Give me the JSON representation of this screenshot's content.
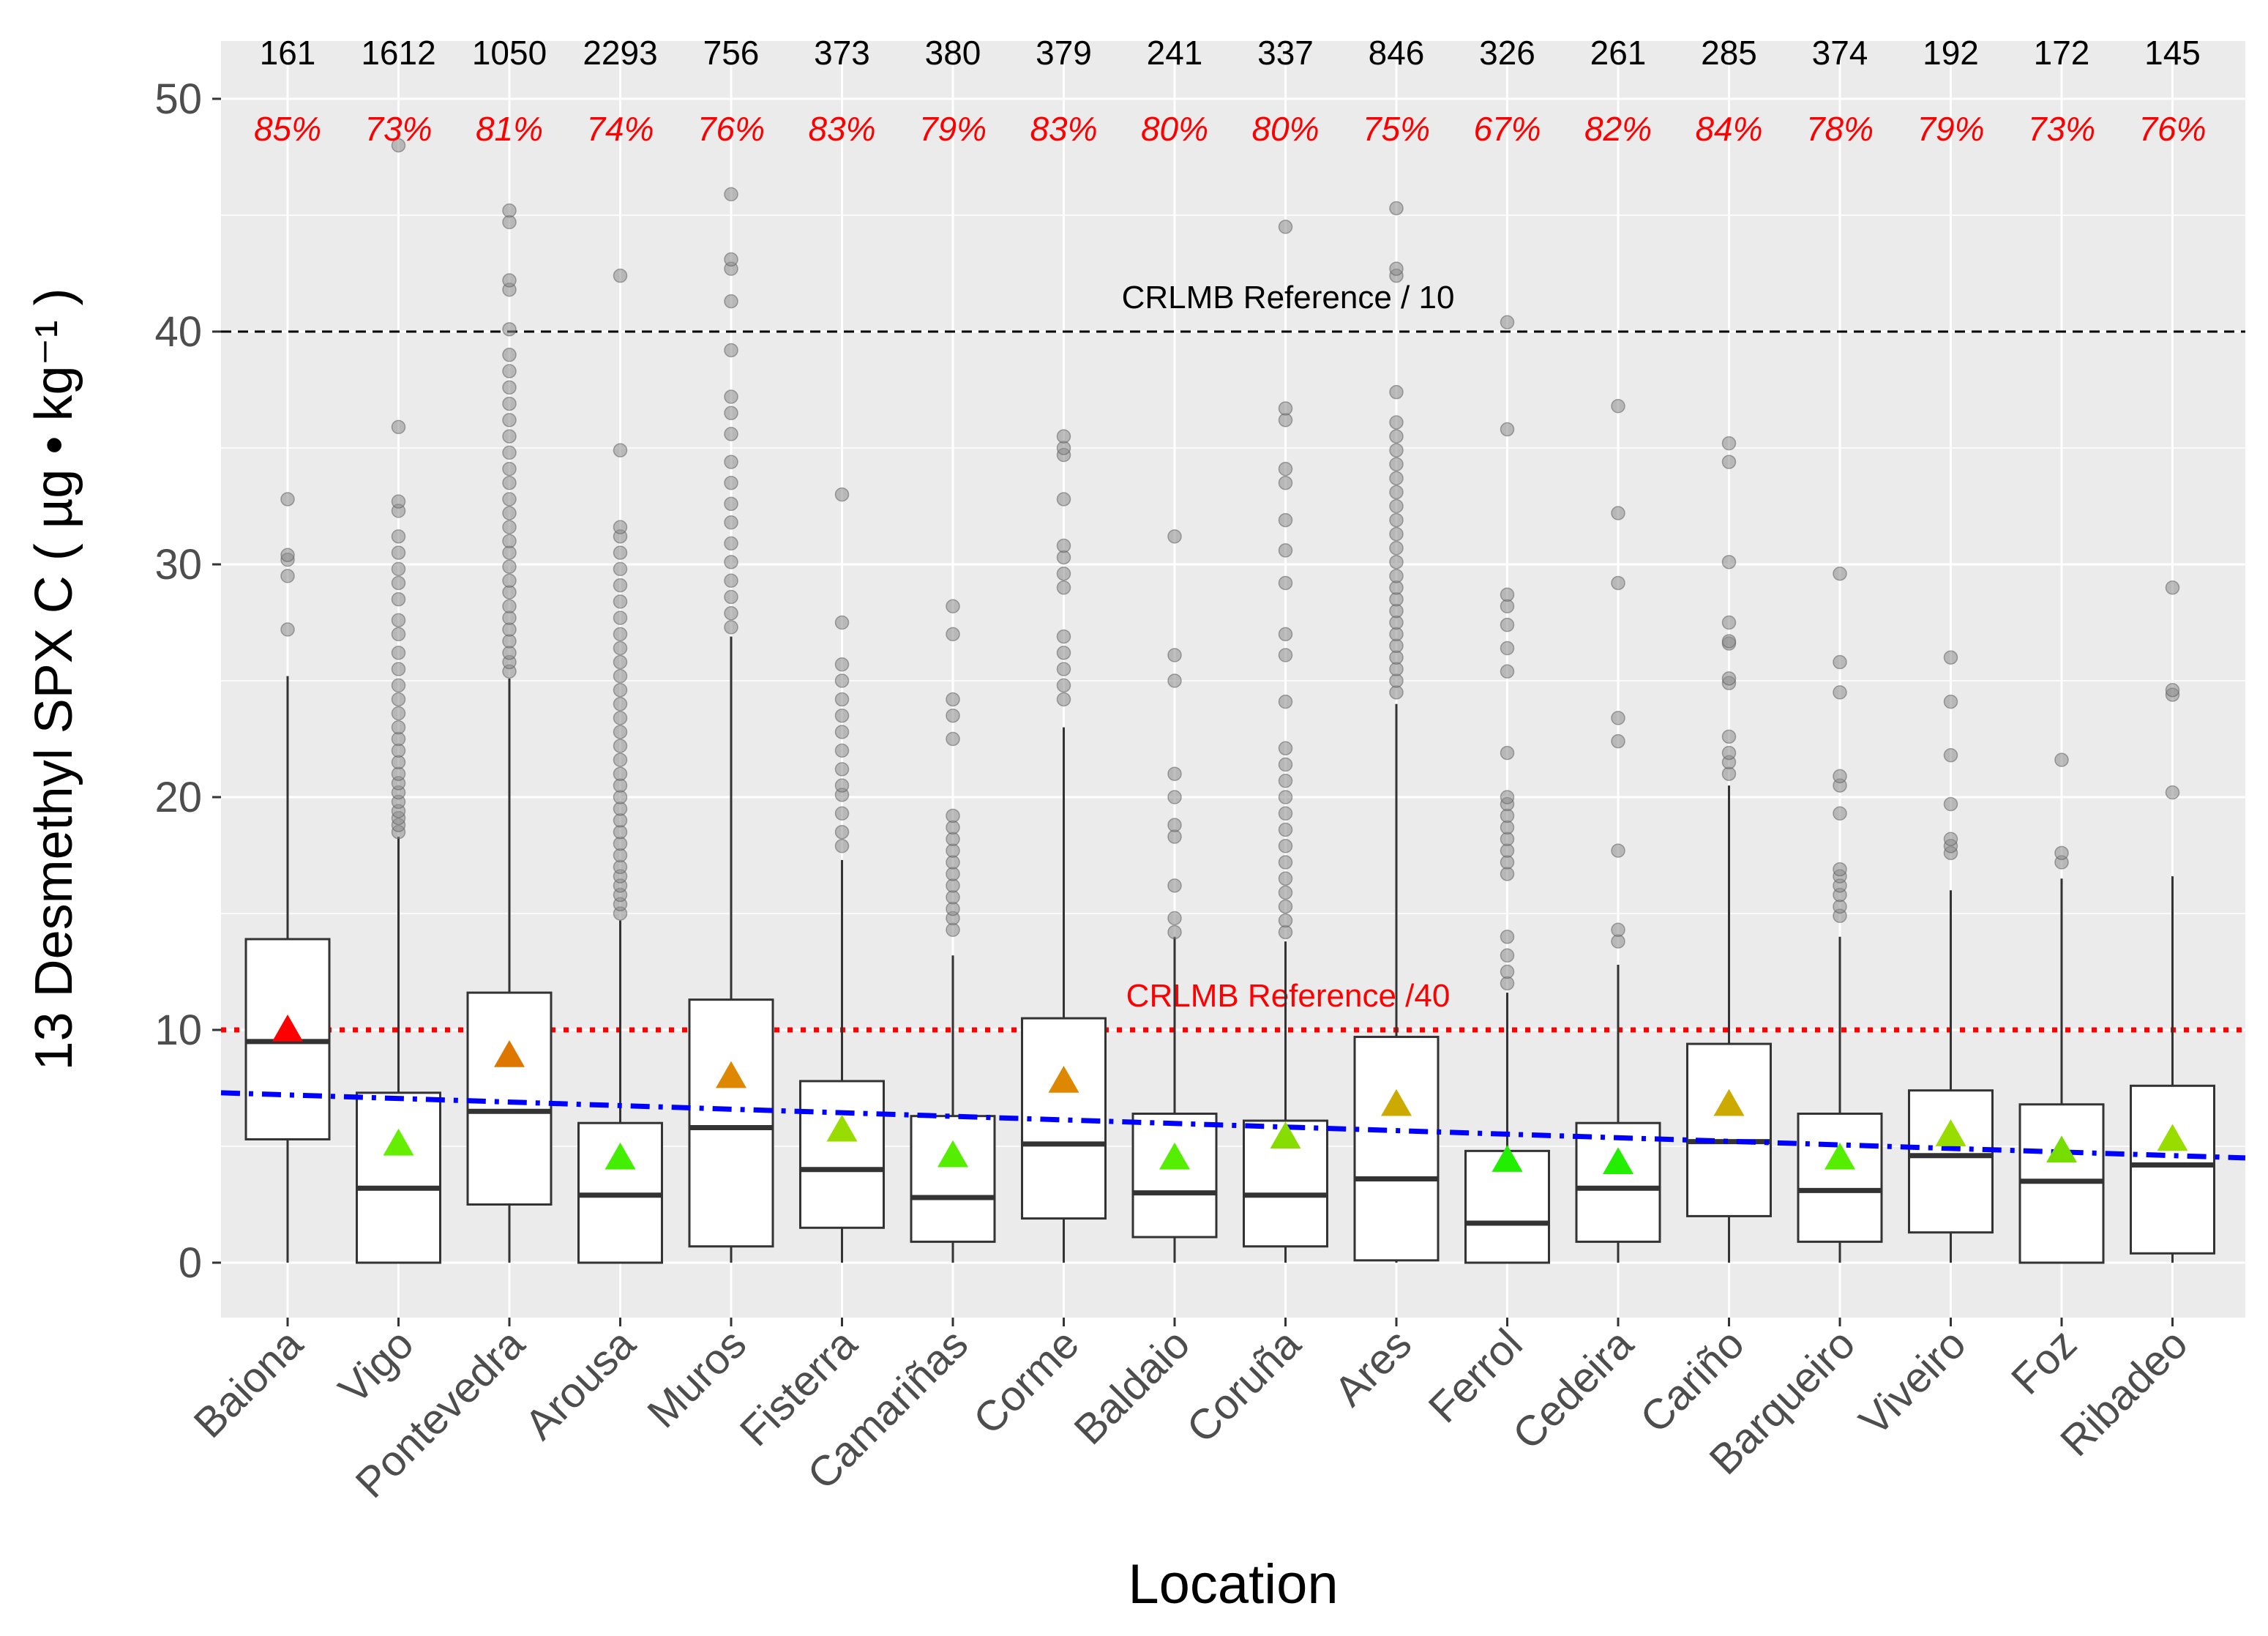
{
  "chart_data": {
    "type": "box",
    "ylabel": "13 Desmethyl SPX C ( µg • kg⁻¹ )",
    "xlabel": "Location",
    "ylim": [
      -2.4,
      52.5
    ],
    "yticks": [
      0,
      10,
      20,
      30,
      40,
      50
    ],
    "grid": true,
    "colors": {
      "panel": "#ebebeb",
      "grid_major": "#ffffff",
      "box_fill": "#ffffff",
      "box_line": "#333333",
      "outlier": "#8c8c8c",
      "trend": "#0000ff",
      "ref40": "#ff0000",
      "ref10": "#000000",
      "pct_text": "#ff0000"
    },
    "reference_lines": [
      {
        "name": "ref10",
        "label": "CRLMB Reference / 10",
        "y": 40,
        "style": "dashed",
        "color": "#000000"
      },
      {
        "name": "ref40",
        "label": "CRLMB Reference /40",
        "y": 10,
        "style": "dotted",
        "color": "#ff0000"
      }
    ],
    "trend_line": {
      "y_start": 7.3,
      "y_end": 4.5,
      "color": "#0000ff"
    },
    "categories": [
      "Baiona",
      "Vigo",
      "Pontevedra",
      "Arousa",
      "Muros",
      "Fisterra",
      "Camariñas",
      "Corme",
      "Baldaio",
      "Coruña",
      "Ares",
      "Ferrol",
      "Cedeira",
      "Cariño",
      "Barqueiro",
      "Viveiro",
      "Foz",
      "Ribadeo"
    ],
    "counts": [
      "161",
      "1612",
      "1050",
      "2293",
      "756",
      "373",
      "380",
      "379",
      "241",
      "337",
      "846",
      "326",
      "261",
      "285",
      "374",
      "192",
      "172",
      "145"
    ],
    "percentages": [
      "85%",
      "73%",
      "81%",
      "74%",
      "76%",
      "83%",
      "79%",
      "83%",
      "80%",
      "80%",
      "75%",
      "67%",
      "82%",
      "84%",
      "78%",
      "79%",
      "73%",
      "76%"
    ],
    "boxes": [
      {
        "name": "Baiona",
        "min": 0,
        "q1": 5.3,
        "median": 9.5,
        "q3": 13.9,
        "max": 25.2,
        "mean": 10.0,
        "mean_color": "#ff0000",
        "outliers": [
          27.2,
          29.5,
          30.2,
          30.4,
          32.8
        ]
      },
      {
        "name": "Vigo",
        "min": 0,
        "q1": 0,
        "median": 3.2,
        "q3": 7.3,
        "max": 18.3,
        "mean": 5.1,
        "mean_color": "#66ee00",
        "outliers": [
          18.5,
          18.8,
          19.1,
          19.4,
          19.8,
          20.2,
          20.6,
          21.0,
          21.5,
          22.0,
          22.5,
          23.0,
          23.6,
          24.2,
          24.8,
          25.5,
          26.2,
          27.0,
          27.6,
          28.5,
          29.2,
          29.8,
          30.5,
          31.2,
          32.3,
          32.7,
          35.9,
          48.0
        ]
      },
      {
        "name": "Pontevedra",
        "min": 0,
        "q1": 2.5,
        "median": 6.5,
        "q3": 11.6,
        "max": 25.1,
        "mean": 8.9,
        "mean_color": "#dd7700",
        "outliers": [
          25.4,
          25.8,
          26.2,
          26.7,
          27.2,
          27.7,
          28.2,
          28.8,
          29.3,
          29.9,
          30.5,
          31.0,
          31.6,
          32.2,
          32.8,
          33.5,
          34.1,
          34.8,
          35.5,
          36.2,
          36.9,
          37.6,
          38.3,
          39.0,
          40.1,
          41.8,
          42.2,
          44.7,
          45.2
        ]
      },
      {
        "name": "Arousa",
        "min": 0,
        "q1": 0,
        "median": 2.9,
        "q3": 6.0,
        "max": 14.7,
        "mean": 4.5,
        "mean_color": "#44ee00",
        "outliers": [
          15.0,
          15.4,
          15.8,
          16.2,
          16.6,
          17.0,
          17.5,
          18.0,
          18.5,
          19.0,
          19.5,
          20.0,
          20.5,
          21.0,
          21.6,
          22.2,
          22.8,
          23.4,
          24.0,
          24.6,
          25.2,
          25.8,
          26.4,
          27.0,
          27.7,
          28.4,
          29.1,
          29.8,
          30.5,
          31.2,
          31.6,
          34.9,
          42.4
        ]
      },
      {
        "name": "Muros",
        "min": 0,
        "q1": 0.7,
        "median": 5.8,
        "q3": 11.3,
        "max": 26.9,
        "mean": 8.0,
        "mean_color": "#dd8800",
        "outliers": [
          27.3,
          27.9,
          28.6,
          29.3,
          30.1,
          30.9,
          31.8,
          32.6,
          33.5,
          34.4,
          35.6,
          36.5,
          37.2,
          39.2,
          41.3,
          42.7,
          43.1,
          45.9
        ]
      },
      {
        "name": "Fisterra",
        "min": 0,
        "q1": 1.5,
        "median": 4.0,
        "q3": 7.8,
        "max": 17.3,
        "mean": 5.7,
        "mean_color": "#99dd00",
        "outliers": [
          17.9,
          18.5,
          19.3,
          20.1,
          20.5,
          21.2,
          22.0,
          22.8,
          23.5,
          24.2,
          25.0,
          25.7,
          27.5,
          33.0
        ]
      },
      {
        "name": "Camariñas",
        "min": 0,
        "q1": 0.9,
        "median": 2.8,
        "q3": 6.3,
        "max": 13.2,
        "mean": 4.6,
        "mean_color": "#55ee00",
        "outliers": [
          14.3,
          14.8,
          15.2,
          15.7,
          16.2,
          16.7,
          17.2,
          17.7,
          18.2,
          18.7,
          19.2,
          22.5,
          23.5,
          24.2,
          27.0,
          28.2
        ]
      },
      {
        "name": "Corme",
        "min": 0,
        "q1": 1.9,
        "median": 5.1,
        "q3": 10.5,
        "max": 23.0,
        "mean": 7.8,
        "mean_color": "#dd8800",
        "outliers": [
          24.2,
          24.8,
          25.5,
          26.2,
          26.9,
          29.0,
          29.6,
          30.3,
          30.8,
          32.8,
          34.7,
          35.0,
          35.5
        ]
      },
      {
        "name": "Baldaio",
        "min": 0,
        "q1": 1.1,
        "median": 3.0,
        "q3": 6.4,
        "max": 14.0,
        "mean": 4.5,
        "mean_color": "#55ee00",
        "outliers": [
          14.2,
          14.8,
          16.2,
          18.3,
          18.8,
          20.0,
          21.0,
          25.0,
          26.1,
          31.2
        ]
      },
      {
        "name": "Coruña",
        "min": 0,
        "q1": 0.7,
        "median": 2.9,
        "q3": 6.1,
        "max": 13.8,
        "mean": 5.4,
        "mean_color": "#88dd00",
        "outliers": [
          14.2,
          14.7,
          15.3,
          15.9,
          16.5,
          17.2,
          17.9,
          18.6,
          19.3,
          20.0,
          20.7,
          21.4,
          22.1,
          24.1,
          26.1,
          27.0,
          29.2,
          30.6,
          31.9,
          33.5,
          34.1,
          36.2,
          36.7,
          44.5
        ]
      },
      {
        "name": "Ares",
        "min": 0,
        "q1": 0.1,
        "median": 3.6,
        "q3": 9.7,
        "max": 24.0,
        "mean": 6.8,
        "mean_color": "#ccaa00",
        "outliers": [
          24.5,
          25.0,
          25.5,
          26.0,
          26.5,
          27.0,
          27.5,
          28.0,
          28.5,
          29.0,
          29.5,
          30.1,
          30.7,
          31.3,
          31.9,
          32.5,
          33.1,
          33.7,
          34.3,
          34.9,
          35.5,
          36.1,
          37.4,
          42.4,
          42.7,
          45.3
        ]
      },
      {
        "name": "Ferrol",
        "min": 0,
        "q1": 0,
        "median": 1.7,
        "q3": 4.8,
        "max": 11.6,
        "mean": 4.4,
        "mean_color": "#22ee00",
        "outliers": [
          12.0,
          12.5,
          13.2,
          14.0,
          16.7,
          17.2,
          17.7,
          18.2,
          18.7,
          19.2,
          19.7,
          20.0,
          21.9,
          25.4,
          26.4,
          27.4,
          28.2,
          28.7,
          35.8,
          40.4
        ]
      },
      {
        "name": "Cedeira",
        "min": 0,
        "q1": 0.9,
        "median": 3.2,
        "q3": 6.0,
        "max": 12.8,
        "mean": 4.3,
        "mean_color": "#22ee00",
        "outliers": [
          13.8,
          14.3,
          17.7,
          22.4,
          23.4,
          29.2,
          32.2,
          36.8
        ]
      },
      {
        "name": "Cariño",
        "min": 0,
        "q1": 2.0,
        "median": 5.2,
        "q3": 9.4,
        "max": 20.5,
        "mean": 6.8,
        "mean_color": "#ccaa00",
        "outliers": [
          21.0,
          21.5,
          21.9,
          22.6,
          24.9,
          25.1,
          26.6,
          26.7,
          27.5,
          30.1,
          34.4,
          35.2
        ]
      },
      {
        "name": "Barqueiro",
        "min": 0,
        "q1": 0.9,
        "median": 3.1,
        "q3": 6.4,
        "max": 14.0,
        "mean": 4.5,
        "mean_color": "#55ee00",
        "outliers": [
          14.9,
          15.3,
          15.8,
          16.2,
          16.6,
          16.9,
          19.3,
          20.5,
          20.9,
          24.5,
          25.8,
          29.6
        ]
      },
      {
        "name": "Viveiro",
        "min": 0,
        "q1": 1.3,
        "median": 4.6,
        "q3": 7.4,
        "max": 16.0,
        "mean": 5.5,
        "mean_color": "#99dd00",
        "outliers": [
          17.6,
          17.9,
          18.2,
          19.7,
          21.8,
          24.1,
          26.0
        ]
      },
      {
        "name": "Foz",
        "min": 0,
        "q1": 0,
        "median": 3.5,
        "q3": 6.8,
        "max": 16.5,
        "mean": 4.8,
        "mean_color": "#77dd00",
        "outliers": [
          17.2,
          17.6,
          21.6
        ]
      },
      {
        "name": "Ribadeo",
        "min": 0,
        "q1": 0.4,
        "median": 4.2,
        "q3": 7.6,
        "max": 16.6,
        "mean": 5.3,
        "mean_color": "#99dd00",
        "outliers": [
          20.2,
          24.4,
          24.6,
          29.0
        ]
      }
    ]
  }
}
